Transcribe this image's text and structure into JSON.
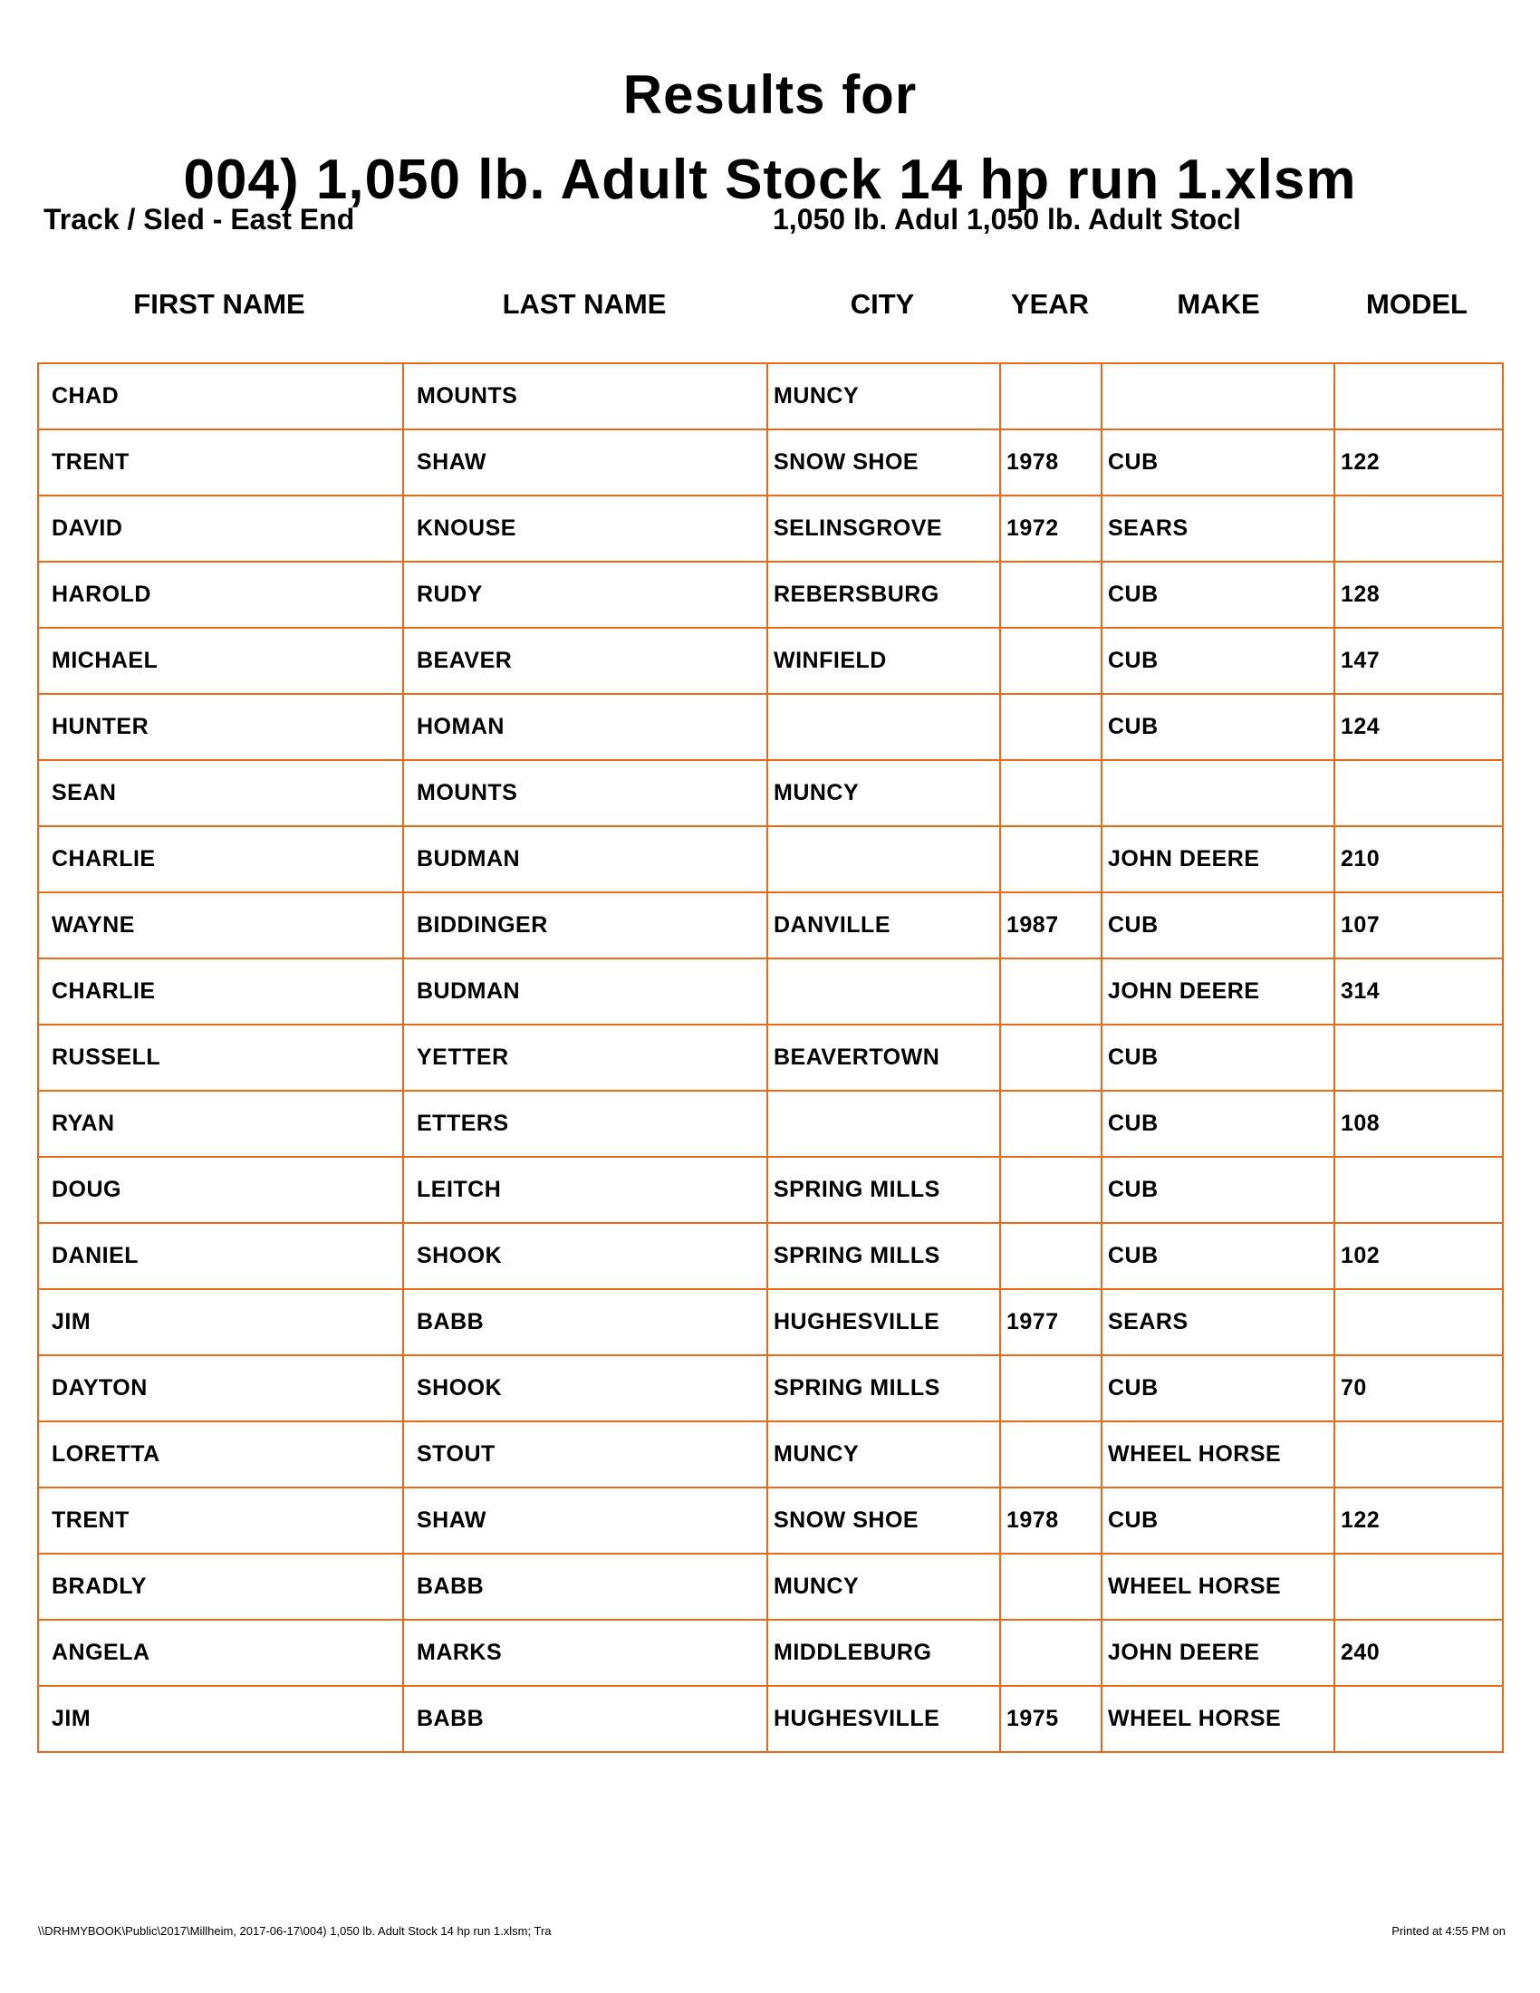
{
  "title": {
    "line1": "Results for",
    "line2": "004) 1,050 lb. Adult Stock 14 hp run 1.xlsm"
  },
  "subtitle": {
    "left": "Track / Sled - East End",
    "right": "1,050 lb. Adul 1,050 lb. Adult Stocl"
  },
  "columns": [
    "FIRST NAME",
    "LAST NAME",
    "CITY",
    "YEAR",
    "MAKE",
    "MODEL"
  ],
  "rows": [
    [
      "CHAD",
      "MOUNTS",
      "MUNCY",
      "",
      "",
      ""
    ],
    [
      "TRENT",
      "SHAW",
      "SNOW SHOE",
      "1978",
      "CUB",
      "122"
    ],
    [
      "DAVID",
      "KNOUSE",
      "SELINSGROVE",
      "1972",
      "SEARS",
      ""
    ],
    [
      "HAROLD",
      "RUDY",
      "REBERSBURG",
      "",
      "CUB",
      "128"
    ],
    [
      "MICHAEL",
      "BEAVER",
      "WINFIELD",
      "",
      "CUB",
      "147"
    ],
    [
      "HUNTER",
      "HOMAN",
      "",
      "",
      "CUB",
      "124"
    ],
    [
      "SEAN",
      "MOUNTS",
      "MUNCY",
      "",
      "",
      ""
    ],
    [
      "CHARLIE",
      "BUDMAN",
      "",
      "",
      "JOHN DEERE",
      "210"
    ],
    [
      "WAYNE",
      "BIDDINGER",
      "DANVILLE",
      "1987",
      "CUB",
      "107"
    ],
    [
      "CHARLIE",
      "BUDMAN",
      "",
      "",
      "JOHN DEERE",
      "314"
    ],
    [
      "RUSSELL",
      "YETTER",
      "BEAVERTOWN",
      "",
      "CUB",
      ""
    ],
    [
      "RYAN",
      "ETTERS",
      "",
      "",
      "CUB",
      "108"
    ],
    [
      "DOUG",
      "LEITCH",
      "SPRING MILLS",
      "",
      "CUB",
      ""
    ],
    [
      "DANIEL",
      "SHOOK",
      "SPRING MILLS",
      "",
      "CUB",
      "102"
    ],
    [
      "JIM",
      "BABB",
      "HUGHESVILLE",
      "1977",
      "SEARS",
      ""
    ],
    [
      "DAYTON",
      "SHOOK",
      "SPRING MILLS",
      "",
      "CUB",
      "70"
    ],
    [
      "LORETTA",
      "STOUT",
      "MUNCY",
      "",
      "WHEEL HORSE",
      ""
    ],
    [
      "TRENT",
      "SHAW",
      "SNOW SHOE",
      "1978",
      "CUB",
      "122"
    ],
    [
      "BRADLY",
      "BABB",
      "MUNCY",
      "",
      "WHEEL HORSE",
      ""
    ],
    [
      "ANGELA",
      "MARKS",
      "MIDDLEBURG",
      "",
      "JOHN DEERE",
      "240"
    ],
    [
      "JIM",
      "BABB",
      "HUGHESVILLE",
      "1975",
      "WHEEL HORSE",
      ""
    ]
  ],
  "footer": {
    "left": "\\\\DRHMYBOOK\\Public\\2017\\Millheim, 2017-06-17\\004) 1,050 lb. Adult Stock 14 hp run 1.xlsm;  Tra",
    "right": "Printed at 4:55 PM on"
  },
  "colors": {
    "grid": "#ea6a1a",
    "text": "#000000"
  }
}
